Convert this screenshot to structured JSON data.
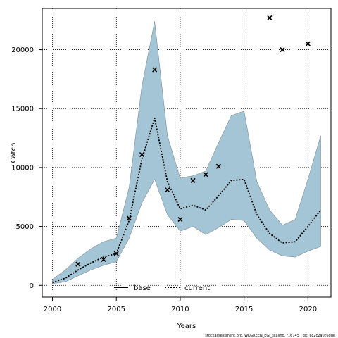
{
  "chart_data": {
    "type": "line",
    "xlabel": "Years",
    "ylabel": "Catch",
    "xlim": [
      1999.2,
      2021.8
    ],
    "ylim": [
      -1000,
      23500
    ],
    "xticks": [
      2000,
      2005,
      2010,
      2015,
      2020
    ],
    "yticks": [
      0,
      5000,
      10000,
      15000,
      20000
    ],
    "grid": true,
    "legend_position": "bottom-center",
    "band": {
      "x": [
        2000,
        2001,
        2002,
        2003,
        2004,
        2005,
        2006,
        2007,
        2008,
        2009,
        2010,
        2011,
        2012,
        2013,
        2014,
        2015,
        2016,
        2017,
        2018,
        2019,
        2020,
        2021
      ],
      "upper": [
        500,
        1300,
        2300,
        3100,
        3700,
        4000,
        8300,
        16900,
        22400,
        12700,
        9100,
        9300,
        9700,
        12100,
        14400,
        14800,
        8800,
        6400,
        5100,
        5600,
        9000,
        12700
      ],
      "lower": [
        150,
        300,
        800,
        1300,
        1700,
        2000,
        4000,
        7000,
        9000,
        6000,
        4600,
        5000,
        4300,
        4900,
        5600,
        5500,
        4000,
        3000,
        2500,
        2400,
        2900,
        3300
      ],
      "fill": "#a4c5d5",
      "stroke": "#7f8c92"
    },
    "series": [
      {
        "name": "base",
        "style": "solid",
        "color": "#000000",
        "x": [],
        "values": []
      },
      {
        "name": "current",
        "style": "dotted",
        "color": "#000000",
        "x": [
          2000,
          2001,
          2002,
          2003,
          2004,
          2005,
          2006,
          2007,
          2008,
          2009,
          2010,
          2011,
          2012,
          2013,
          2014,
          2015,
          2016,
          2017,
          2018,
          2019,
          2020,
          2021
        ],
        "values": [
          250,
          600,
          1300,
          1900,
          2400,
          2700,
          5500,
          10700,
          14200,
          8800,
          6500,
          6800,
          6400,
          7600,
          8900,
          9000,
          6000,
          4400,
          3600,
          3700,
          5000,
          6400
        ]
      }
    ],
    "observations": {
      "marker": "x",
      "x": [
        2002,
        2004,
        2005,
        2006,
        2007,
        2008,
        2009,
        2010,
        2011,
        2012,
        2013,
        2017,
        2018,
        2020
      ],
      "y": [
        1800,
        2200,
        2700,
        5700,
        11100,
        18300,
        8100,
        5600,
        8900,
        9400,
        10100,
        22700,
        20000,
        20500
      ]
    },
    "footer": "stockassessment.org, WKGREEN_EGI_scaling, r16745 , git: ec2c2a0c6dde"
  }
}
